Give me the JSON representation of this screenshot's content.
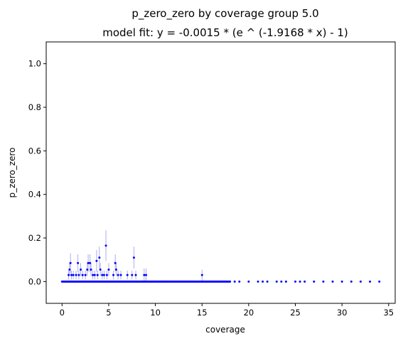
{
  "chart_data": {
    "type": "scatter",
    "title": "p_zero_zero by coverage group 5.0",
    "subtitle": "model fit: y = -0.0015 * (e ^ (-1.9168 * x) - 1)",
    "xlabel": "coverage",
    "ylabel": "p_zero_zero",
    "xlim": [
      -1.7,
      35.7
    ],
    "ylim": [
      -0.1,
      1.1
    ],
    "xticks": [
      0,
      5,
      10,
      15,
      20,
      25,
      30,
      35
    ],
    "yticks": [
      0.0,
      0.2,
      0.4,
      0.6,
      0.8,
      1.0
    ],
    "xtick_labels": [
      "0",
      "5",
      "10",
      "15",
      "20",
      "25",
      "30",
      "35"
    ],
    "ytick_labels": [
      "0.0",
      "0.2",
      "0.4",
      "0.6",
      "0.8",
      "1.0"
    ],
    "grid": false,
    "colors": {
      "points": "#0000ff",
      "errorbars": "#9999ee",
      "axes": "#000000"
    },
    "zero_points_range": [
      0.0,
      18.0
    ],
    "zero_points_sparse_x": [
      18.5,
      19,
      20,
      21,
      21.5,
      22,
      23,
      23.5,
      24,
      25,
      25.5,
      26,
      27,
      28,
      29,
      30,
      31,
      32,
      33,
      34
    ],
    "nonzero_points": [
      {
        "x": 0.9,
        "y": 0.085,
        "err": 0.045
      },
      {
        "x": 0.8,
        "y": 0.055,
        "err": 0.03
      },
      {
        "x": 0.7,
        "y": 0.03,
        "err": 0.02
      },
      {
        "x": 1.0,
        "y": 0.03,
        "err": 0.02
      },
      {
        "x": 1.2,
        "y": 0.03,
        "err": 0.02
      },
      {
        "x": 1.5,
        "y": 0.03,
        "err": 0.02
      },
      {
        "x": 1.7,
        "y": 0.085,
        "err": 0.04
      },
      {
        "x": 1.8,
        "y": 0.03,
        "err": 0.02
      },
      {
        "x": 2.0,
        "y": 0.055,
        "err": 0.03
      },
      {
        "x": 2.2,
        "y": 0.03,
        "err": 0.02
      },
      {
        "x": 2.5,
        "y": 0.03,
        "err": 0.02
      },
      {
        "x": 2.7,
        "y": 0.055,
        "err": 0.03
      },
      {
        "x": 2.8,
        "y": 0.085,
        "err": 0.04
      },
      {
        "x": 3.0,
        "y": 0.085,
        "err": 0.04
      },
      {
        "x": 3.1,
        "y": 0.055,
        "err": 0.03
      },
      {
        "x": 3.3,
        "y": 0.03,
        "err": 0.02
      },
      {
        "x": 3.5,
        "y": 0.03,
        "err": 0.02
      },
      {
        "x": 3.7,
        "y": 0.095,
        "err": 0.05
      },
      {
        "x": 3.8,
        "y": 0.03,
        "err": 0.02
      },
      {
        "x": 4.0,
        "y": 0.11,
        "err": 0.05
      },
      {
        "x": 4.1,
        "y": 0.055,
        "err": 0.03
      },
      {
        "x": 4.3,
        "y": 0.03,
        "err": 0.02
      },
      {
        "x": 4.5,
        "y": 0.03,
        "err": 0.02
      },
      {
        "x": 4.7,
        "y": 0.165,
        "err": 0.07
      },
      {
        "x": 4.8,
        "y": 0.03,
        "err": 0.02
      },
      {
        "x": 5.0,
        "y": 0.055,
        "err": 0.03
      },
      {
        "x": 5.5,
        "y": 0.03,
        "err": 0.02
      },
      {
        "x": 5.7,
        "y": 0.085,
        "err": 0.04
      },
      {
        "x": 5.8,
        "y": 0.055,
        "err": 0.03
      },
      {
        "x": 6.0,
        "y": 0.03,
        "err": 0.02
      },
      {
        "x": 6.3,
        "y": 0.03,
        "err": 0.02
      },
      {
        "x": 7.0,
        "y": 0.03,
        "err": 0.02
      },
      {
        "x": 7.5,
        "y": 0.03,
        "err": 0.02
      },
      {
        "x": 7.7,
        "y": 0.11,
        "err": 0.05
      },
      {
        "x": 7.9,
        "y": 0.03,
        "err": 0.02
      },
      {
        "x": 8.8,
        "y": 0.03,
        "err": 0.03
      },
      {
        "x": 9.0,
        "y": 0.03,
        "err": 0.03
      },
      {
        "x": 15.0,
        "y": 0.03,
        "err": 0.025
      }
    ]
  }
}
